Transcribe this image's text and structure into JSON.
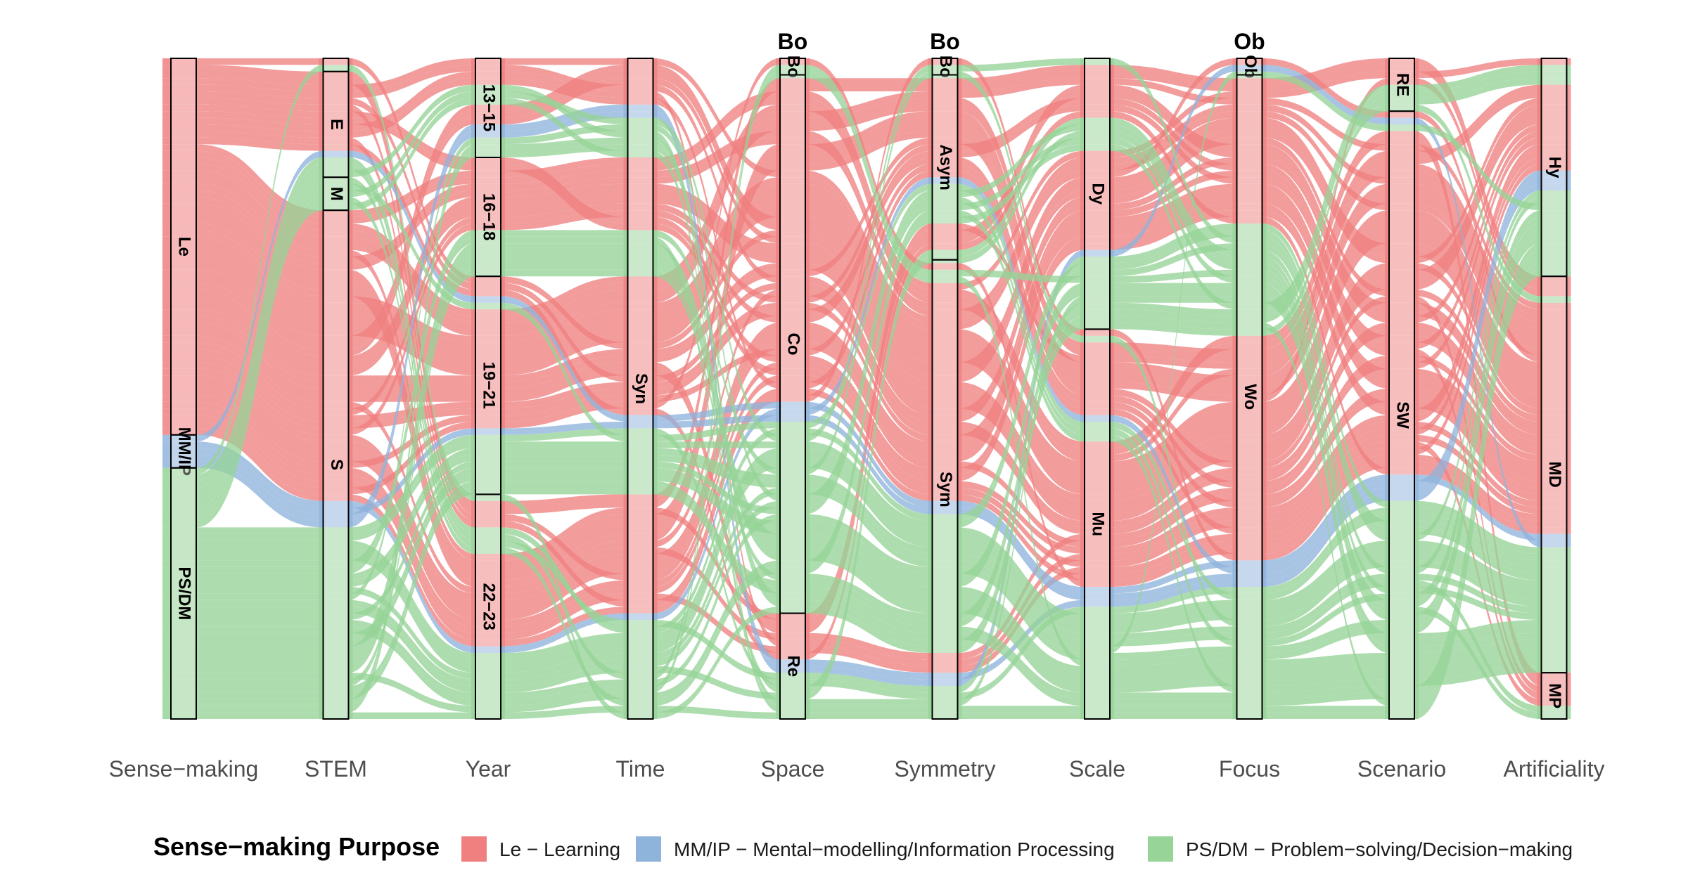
{
  "chart_data": {
    "type": "alluvial",
    "axes": [
      "Sense−making",
      "STEM",
      "Year",
      "Time",
      "Space",
      "Symmetry",
      "Scale",
      "Focus",
      "Scenario",
      "Artificiality"
    ],
    "strata": [
      [
        {
          "label": "Le",
          "value": 57
        },
        {
          "label": "MM/IP",
          "value": 5
        },
        {
          "label": "PS/DM",
          "value": 38
        }
      ],
      [
        {
          "label": "",
          "value": 2
        },
        {
          "label": "E",
          "value": 16
        },
        {
          "label": "M",
          "value": 5
        },
        {
          "label": "S",
          "value": 77
        }
      ],
      [
        {
          "label": "13−15",
          "value": 15
        },
        {
          "label": "16−18",
          "value": 18
        },
        {
          "label": "19−21",
          "value": 33
        },
        {
          "label": "22−23",
          "value": 34
        }
      ],
      [
        {
          "label": "Syn",
          "value": 100
        }
      ],
      [
        {
          "label": "Bo",
          "value": 2.5
        },
        {
          "label": "Co",
          "value": 81.5
        },
        {
          "label": "Re",
          "value": 16
        }
      ],
      [
        {
          "label": "Bo",
          "value": 2.5
        },
        {
          "label": "Asym",
          "value": 28
        },
        {
          "label": "Sym",
          "value": 69.5
        }
      ],
      [
        {
          "label": "Dy",
          "value": 41
        },
        {
          "label": "Mu",
          "value": 59
        }
      ],
      [
        {
          "label": "Ob",
          "value": 2.5
        },
        {
          "label": "Wo",
          "value": 97.5
        }
      ],
      [
        {
          "label": "RE",
          "value": 8
        },
        {
          "label": "SW",
          "value": 92
        }
      ],
      [
        {
          "label": "Hy",
          "value": 33
        },
        {
          "label": "MD",
          "value": 60
        },
        {
          "label": "MP",
          "value": 7
        }
      ]
    ],
    "top_labels": {
      "Space": "Bo",
      "Symmetry": "Bo",
      "Focus": "Ob"
    },
    "series": [
      {
        "name": "Le − Learning",
        "color": "#f08080"
      },
      {
        "name": "MM/IP − Mental−modelling/Information Processing",
        "color": "#8fb4dc"
      },
      {
        "name": "PS/DM − Problem−solving/Decision−making",
        "color": "#96d497"
      }
    ],
    "legend": {
      "title": "Sense−making Purpose",
      "position": "bottom"
    }
  }
}
